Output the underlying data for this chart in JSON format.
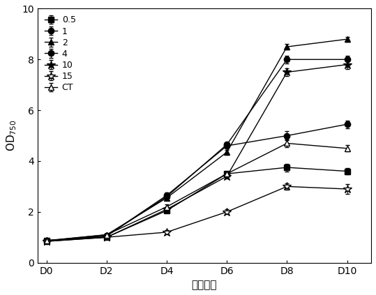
{
  "x_labels": [
    "D0",
    "D2",
    "D4",
    "D6",
    "D8",
    "D10"
  ],
  "x_values": [
    0,
    2,
    4,
    6,
    8,
    10
  ],
  "series": [
    {
      "label": "0.5",
      "marker": "s",
      "fillstyle": "full",
      "y": [
        0.88,
        1.0,
        2.05,
        3.5,
        3.75,
        3.6
      ],
      "yerr": [
        0.04,
        0.04,
        0.08,
        0.1,
        0.15,
        0.12
      ]
    },
    {
      "label": "1",
      "marker": "o",
      "fillstyle": "full",
      "y": [
        0.85,
        1.05,
        2.6,
        4.65,
        8.0,
        8.0
      ],
      "yerr": [
        0.04,
        0.04,
        0.1,
        0.1,
        0.15,
        0.15
      ]
    },
    {
      "label": "2",
      "marker": "^",
      "fillstyle": "full",
      "y": [
        0.87,
        1.1,
        2.55,
        4.35,
        8.5,
        8.8
      ],
      "yerr": [
        0.04,
        0.04,
        0.1,
        0.1,
        0.12,
        0.1
      ]
    },
    {
      "label": "4",
      "marker": "o",
      "fillstyle": "full",
      "y": [
        0.86,
        1.05,
        2.65,
        4.6,
        5.0,
        5.45
      ],
      "yerr": [
        0.04,
        0.04,
        0.1,
        0.12,
        0.18,
        0.15
      ]
    },
    {
      "label": "10",
      "marker": "*",
      "fillstyle": "full",
      "y": [
        0.84,
        1.0,
        2.1,
        3.4,
        7.5,
        7.8
      ],
      "yerr": [
        0.04,
        0.04,
        0.1,
        0.1,
        0.15,
        0.18
      ]
    },
    {
      "label": "15",
      "marker": "*",
      "fillstyle": "none",
      "y": [
        0.84,
        1.0,
        1.2,
        2.0,
        3.0,
        2.9
      ],
      "yerr": [
        0.04,
        0.04,
        0.08,
        0.1,
        0.12,
        0.18
      ]
    },
    {
      "label": "CT",
      "marker": "^",
      "fillstyle": "none",
      "y": [
        0.86,
        1.1,
        2.2,
        3.5,
        4.7,
        4.5
      ],
      "yerr": [
        0.04,
        0.04,
        0.1,
        0.1,
        0.15,
        0.12
      ]
    }
  ],
  "ylabel": "OD$_{750}$",
  "xlabel": "培养时间",
  "ylim": [
    0,
    10
  ],
  "yticks": [
    0,
    2,
    4,
    6,
    8,
    10
  ],
  "xlim": [
    -0.3,
    10.8
  ],
  "line_color": "black",
  "markersize": 6,
  "star_markersize": 9,
  "capsize": 2,
  "legend_fontsize": 9,
  "axis_fontsize": 11,
  "tick_fontsize": 10
}
